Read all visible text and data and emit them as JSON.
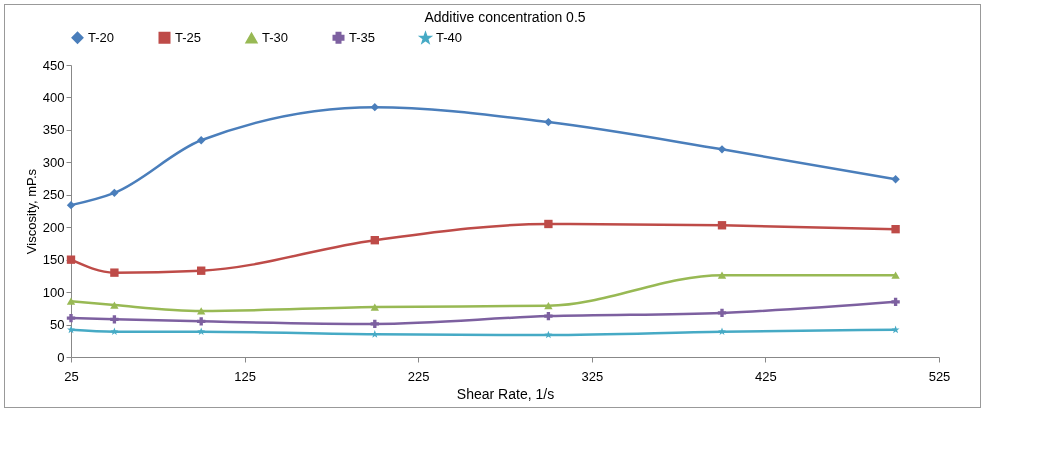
{
  "chart_data": {
    "type": "line",
    "title": "Additive concentration 0.5",
    "xlabel": "Shear Rate, 1/s",
    "ylabel": "Viscosity, mP.s",
    "x": [
      25,
      50,
      100,
      200,
      300,
      400,
      500
    ],
    "series": [
      {
        "name": "T-20",
        "color": "#4a7ebb",
        "marker": "diamond",
        "values": [
          234,
          253,
          334,
          385,
          362,
          320,
          274
        ]
      },
      {
        "name": "T-25",
        "color": "#be4b48",
        "marker": "square",
        "values": [
          150,
          130,
          133,
          180,
          205,
          203,
          197
        ]
      },
      {
        "name": "T-30",
        "color": "#98b954",
        "marker": "triangle",
        "values": [
          86,
          80,
          71,
          77,
          79,
          126,
          126
        ]
      },
      {
        "name": "T-35",
        "color": "#7d60a0",
        "marker": "cross",
        "values": [
          60,
          58,
          55,
          51,
          63,
          68,
          85
        ]
      },
      {
        "name": "T-40",
        "color": "#46aac5",
        "marker": "star",
        "values": [
          42,
          39,
          39,
          35,
          34,
          39,
          42
        ]
      }
    ],
    "xlim": [
      25,
      525
    ],
    "xticks": [
      25,
      125,
      225,
      325,
      425,
      525
    ],
    "ylim": [
      0,
      450
    ],
    "yticks": [
      0,
      50,
      100,
      150,
      200,
      250,
      300,
      350,
      400,
      450
    ],
    "grid": false,
    "legend": "top",
    "line_style": "solid"
  }
}
